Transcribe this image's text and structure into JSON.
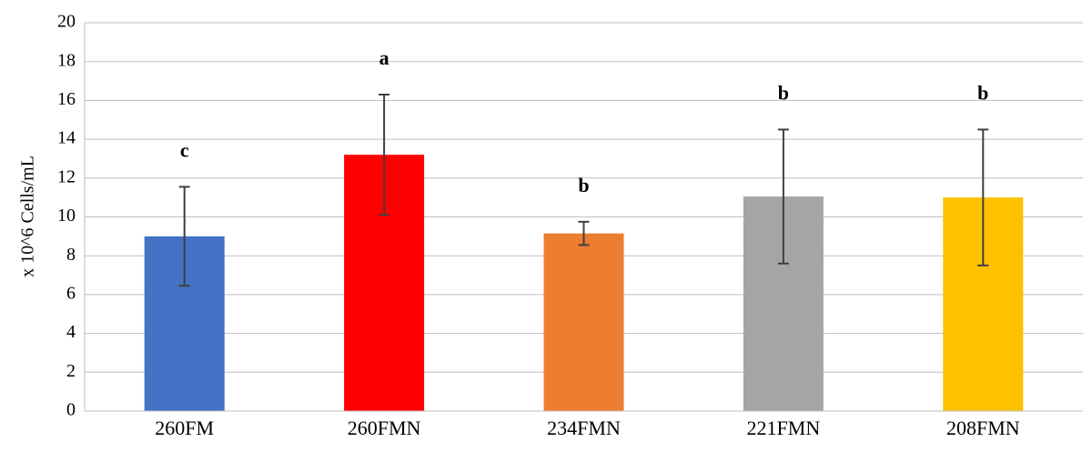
{
  "chart_data": {
    "type": "bar",
    "y_label": "x 10^6 Cells/mL",
    "categories": [
      "260FM",
      "260FMN",
      "234FMN",
      "221FMN",
      "208FMN"
    ],
    "values": [
      9.0,
      13.2,
      9.15,
      11.05,
      11.0
    ],
    "errors": [
      2.55,
      3.1,
      0.6,
      3.45,
      3.5
    ],
    "colors": [
      "#4472c4",
      "#ff0000",
      "#ed7d31",
      "#a5a5a5",
      "#ffc000"
    ],
    "annotations": [
      "c",
      "a",
      "b",
      "b",
      "b"
    ],
    "ylim": [
      0,
      20
    ],
    "yticks": [
      0,
      2,
      4,
      6,
      8,
      10,
      12,
      14,
      16,
      18,
      20
    ],
    "grid": true
  }
}
